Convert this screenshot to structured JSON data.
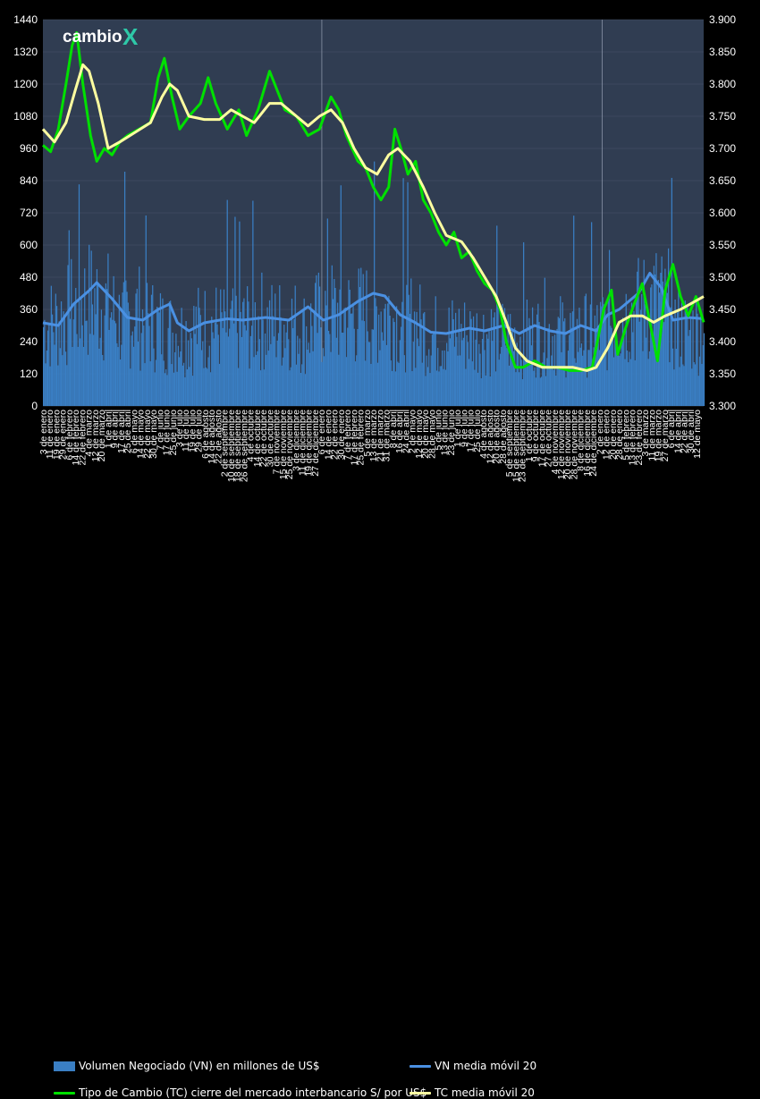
{
  "chart_data": {
    "type": "bar+line",
    "left_axis": {
      "ylim": [
        0,
        1440
      ],
      "ticks": [
        "0",
        "120",
        "240",
        "360",
        "480",
        "600",
        "720",
        "840",
        "960",
        "1080",
        "1200",
        "1320",
        "1440"
      ]
    },
    "right_axis": {
      "ylim": [
        3.3,
        3.9
      ],
      "ticks": [
        "3.300",
        "3.350",
        "3.400",
        "3.450",
        "3.500",
        "3.550",
        "3.600",
        "3.650",
        "3.700",
        "3.750",
        "3.800",
        "3.850",
        "3.900"
      ]
    },
    "year_labels": [
      "2024",
      "2025",
      "2026"
    ],
    "x_range_days": [
      0,
      860
    ],
    "year_boundaries_days": [
      363,
      728
    ],
    "x_tick_labels": [
      "3 de enero",
      "11 de enero",
      "19 de enero",
      "29 de enero",
      "6 de febrero",
      "14 de febrero",
      "22 de febrero",
      "4 de marzo",
      "12 de marzo",
      "20 de marzo",
      "1 de abril",
      "9 de abril",
      "17 de abril",
      "25 de abril",
      "6 de mayo",
      "14 de mayo",
      "22 de mayo",
      "30 de mayo",
      "7 de junio",
      "17 de junio",
      "25 de junio",
      "3 de julio",
      "11 de julio",
      "19 de julio",
      "29 de julio",
      "6 de agosto",
      "14 de agosto",
      "22 de agosto",
      "2 de septiembre",
      "10 de septiembre",
      "18 de septiembre",
      "26 de septiembre",
      "4 de octubre",
      "14 de octubre",
      "22 de octubre",
      "30 de octubre",
      "7 de noviembre",
      "15 de noviembre",
      "25 de noviembre",
      "3 de diciembre",
      "11 de diciembre",
      "19 de diciembre",
      "27 de diciembre",
      "6 de enero",
      "14 de enero",
      "22 de enero",
      "30 de enero",
      "7 de febrero",
      "17 de febrero",
      "25 de febrero",
      "5 de marzo",
      "13 de marzo",
      "21 de marzo",
      "31 de marzo",
      "8 de abril",
      "16 de abril",
      "24 de abril",
      "2 de mayo",
      "12 de mayo",
      "20 de mayo",
      "28 de mayo",
      "5 de junio",
      "13 de junio",
      "23 de junio",
      "1 de julio",
      "9 de julio",
      "17 de julio",
      "25 de julio",
      "4 de agosto",
      "12 de agosto",
      "20 de agosto",
      "28 de agosto",
      "5 de septiembre",
      "15 de septiembre",
      "23 de septiembre",
      "1 de octubre",
      "9 de octubre",
      "17 de octubre",
      "27 de octubre",
      "4 de noviembre",
      "12 de noviembre",
      "20 de noviembre",
      "28 de noviembre",
      "8 de diciembre",
      "16 de diciembre",
      "24 de diciembre",
      "2 de enero",
      "12 de enero",
      "20 de enero",
      "28 de enero",
      "5 de febrero",
      "13 de febrero",
      "23 de febrero",
      "3 de marzo",
      "11 de marzo",
      "19 de marzo",
      "27 de marzo",
      "6 de abril",
      "14 de abril",
      "22 de abril",
      "30 de abril",
      "12 de mayo"
    ],
    "series": [
      {
        "name": "Volumen Negociado (VN) en millones de US$",
        "kind": "bar",
        "axis": "left",
        "points": [
          [
            0,
            330
          ],
          [
            20,
            350
          ],
          [
            40,
            400
          ],
          [
            60,
            440
          ],
          [
            80,
            420
          ],
          [
            100,
            350
          ],
          [
            120,
            380
          ],
          [
            140,
            340
          ],
          [
            160,
            310
          ],
          [
            180,
            300
          ],
          [
            200,
            320
          ],
          [
            220,
            330
          ],
          [
            240,
            320
          ],
          [
            260,
            330
          ],
          [
            280,
            360
          ],
          [
            300,
            330
          ],
          [
            320,
            350
          ],
          [
            340,
            310
          ],
          [
            363,
            370
          ],
          [
            380,
            390
          ],
          [
            400,
            370
          ],
          [
            420,
            380
          ],
          [
            440,
            400
          ],
          [
            460,
            360
          ],
          [
            480,
            350
          ],
          [
            500,
            300
          ],
          [
            520,
            290
          ],
          [
            540,
            300
          ],
          [
            560,
            290
          ],
          [
            580,
            300
          ],
          [
            600,
            280
          ],
          [
            620,
            280
          ],
          [
            640,
            290
          ],
          [
            660,
            300
          ],
          [
            680,
            290
          ],
          [
            700,
            300
          ],
          [
            720,
            300
          ],
          [
            740,
            350
          ],
          [
            760,
            380
          ],
          [
            780,
            400
          ],
          [
            800,
            440
          ],
          [
            820,
            330
          ],
          [
            840,
            300
          ],
          [
            860,
            330
          ]
        ]
      },
      {
        "name": "VN media móvil 20",
        "kind": "line",
        "axis": "left",
        "color": "#4a90e2",
        "points": [
          [
            0,
            310
          ],
          [
            20,
            300
          ],
          [
            40,
            380
          ],
          [
            60,
            430
          ],
          [
            70,
            460
          ],
          [
            90,
            400
          ],
          [
            110,
            330
          ],
          [
            130,
            320
          ],
          [
            150,
            360
          ],
          [
            165,
            380
          ],
          [
            175,
            310
          ],
          [
            190,
            280
          ],
          [
            210,
            310
          ],
          [
            240,
            325
          ],
          [
            260,
            320
          ],
          [
            290,
            330
          ],
          [
            320,
            320
          ],
          [
            345,
            370
          ],
          [
            365,
            320
          ],
          [
            385,
            340
          ],
          [
            410,
            390
          ],
          [
            430,
            420
          ],
          [
            445,
            410
          ],
          [
            465,
            340
          ],
          [
            485,
            310
          ],
          [
            505,
            275
          ],
          [
            525,
            270
          ],
          [
            555,
            290
          ],
          [
            575,
            280
          ],
          [
            600,
            300
          ],
          [
            620,
            270
          ],
          [
            640,
            300
          ],
          [
            660,
            280
          ],
          [
            680,
            270
          ],
          [
            700,
            300
          ],
          [
            720,
            280
          ],
          [
            735,
            340
          ],
          [
            750,
            360
          ],
          [
            775,
            420
          ],
          [
            790,
            495
          ],
          [
            805,
            440
          ],
          [
            820,
            320
          ],
          [
            840,
            330
          ],
          [
            860,
            325
          ]
        ]
      },
      {
        "name": "Tipo de Cambio (TC) cierre del mercado interbancario S/ por US$",
        "kind": "line",
        "axis": "right",
        "color": "#00e000",
        "points": [
          [
            0,
            3.705
          ],
          [
            10,
            3.695
          ],
          [
            20,
            3.73
          ],
          [
            30,
            3.8
          ],
          [
            38,
            3.86
          ],
          [
            44,
            3.88
          ],
          [
            52,
            3.8
          ],
          [
            62,
            3.72
          ],
          [
            70,
            3.68
          ],
          [
            80,
            3.7
          ],
          [
            90,
            3.69
          ],
          [
            100,
            3.71
          ],
          [
            110,
            3.72
          ],
          [
            125,
            3.73
          ],
          [
            140,
            3.74
          ],
          [
            150,
            3.81
          ],
          [
            158,
            3.84
          ],
          [
            168,
            3.78
          ],
          [
            178,
            3.73
          ],
          [
            190,
            3.75
          ],
          [
            205,
            3.77
          ],
          [
            215,
            3.81
          ],
          [
            225,
            3.77
          ],
          [
            240,
            3.73
          ],
          [
            255,
            3.76
          ],
          [
            265,
            3.72
          ],
          [
            280,
            3.76
          ],
          [
            295,
            3.82
          ],
          [
            305,
            3.79
          ],
          [
            315,
            3.76
          ],
          [
            330,
            3.75
          ],
          [
            345,
            3.72
          ],
          [
            360,
            3.73
          ],
          [
            375,
            3.78
          ],
          [
            385,
            3.76
          ],
          [
            395,
            3.72
          ],
          [
            410,
            3.68
          ],
          [
            420,
            3.67
          ],
          [
            430,
            3.64
          ],
          [
            440,
            3.62
          ],
          [
            450,
            3.64
          ],
          [
            458,
            3.73
          ],
          [
            466,
            3.7
          ],
          [
            475,
            3.66
          ],
          [
            485,
            3.68
          ],
          [
            495,
            3.62
          ],
          [
            505,
            3.6
          ],
          [
            515,
            3.57
          ],
          [
            525,
            3.55
          ],
          [
            535,
            3.57
          ],
          [
            545,
            3.53
          ],
          [
            555,
            3.54
          ],
          [
            565,
            3.51
          ],
          [
            575,
            3.49
          ],
          [
            585,
            3.48
          ],
          [
            595,
            3.45
          ],
          [
            603,
            3.4
          ],
          [
            615,
            3.36
          ],
          [
            625,
            3.36
          ],
          [
            640,
            3.37
          ],
          [
            655,
            3.36
          ],
          [
            670,
            3.36
          ],
          [
            685,
            3.355
          ],
          [
            700,
            3.355
          ],
          [
            715,
            3.36
          ],
          [
            730,
            3.45
          ],
          [
            740,
            3.48
          ],
          [
            748,
            3.38
          ],
          [
            758,
            3.42
          ],
          [
            770,
            3.46
          ],
          [
            780,
            3.49
          ],
          [
            790,
            3.43
          ],
          [
            800,
            3.37
          ],
          [
            810,
            3.48
          ],
          [
            820,
            3.52
          ],
          [
            830,
            3.47
          ],
          [
            840,
            3.44
          ],
          [
            850,
            3.47
          ],
          [
            860,
            3.43
          ]
        ]
      },
      {
        "name": "TC media móvil 20",
        "kind": "line",
        "axis": "right",
        "color": "#ffffa0",
        "points": [
          [
            0,
            3.73
          ],
          [
            15,
            3.71
          ],
          [
            30,
            3.74
          ],
          [
            42,
            3.79
          ],
          [
            52,
            3.83
          ],
          [
            60,
            3.82
          ],
          [
            72,
            3.77
          ],
          [
            85,
            3.7
          ],
          [
            100,
            3.71
          ],
          [
            120,
            3.725
          ],
          [
            140,
            3.74
          ],
          [
            155,
            3.78
          ],
          [
            165,
            3.8
          ],
          [
            175,
            3.79
          ],
          [
            190,
            3.75
          ],
          [
            210,
            3.745
          ],
          [
            230,
            3.745
          ],
          [
            245,
            3.76
          ],
          [
            260,
            3.75
          ],
          [
            275,
            3.74
          ],
          [
            295,
            3.77
          ],
          [
            310,
            3.77
          ],
          [
            330,
            3.75
          ],
          [
            345,
            3.735
          ],
          [
            360,
            3.75
          ],
          [
            375,
            3.76
          ],
          [
            390,
            3.74
          ],
          [
            405,
            3.7
          ],
          [
            420,
            3.67
          ],
          [
            435,
            3.66
          ],
          [
            450,
            3.69
          ],
          [
            462,
            3.7
          ],
          [
            478,
            3.68
          ],
          [
            495,
            3.64
          ],
          [
            510,
            3.6
          ],
          [
            525,
            3.565
          ],
          [
            545,
            3.555
          ],
          [
            560,
            3.53
          ],
          [
            575,
            3.5
          ],
          [
            590,
            3.47
          ],
          [
            603,
            3.43
          ],
          [
            615,
            3.39
          ],
          [
            630,
            3.37
          ],
          [
            650,
            3.36
          ],
          [
            670,
            3.36
          ],
          [
            690,
            3.36
          ],
          [
            708,
            3.355
          ],
          [
            720,
            3.36
          ],
          [
            735,
            3.39
          ],
          [
            750,
            3.43
          ],
          [
            765,
            3.44
          ],
          [
            780,
            3.44
          ],
          [
            795,
            3.43
          ],
          [
            810,
            3.44
          ],
          [
            830,
            3.45
          ],
          [
            845,
            3.46
          ],
          [
            860,
            3.47
          ]
        ]
      }
    ]
  },
  "brand": {
    "name": "cambio",
    "mark": "X"
  },
  "legend": {
    "vn": "Volumen Negociado (VN) en millones de US$",
    "vn_ma": "VN media móvil 20",
    "tc": "Tipo de Cambio (TC) cierre del mercado interbancario S/ por US$",
    "tc_ma": "TC media móvil 20"
  },
  "colors": {
    "bar": "#3a7fc4",
    "plot_bg": "#303d52",
    "vn_ma": "#4a90e2",
    "tc": "#00e000",
    "tc_ma": "#ffffa0",
    "year_label": "#2a3a55"
  }
}
